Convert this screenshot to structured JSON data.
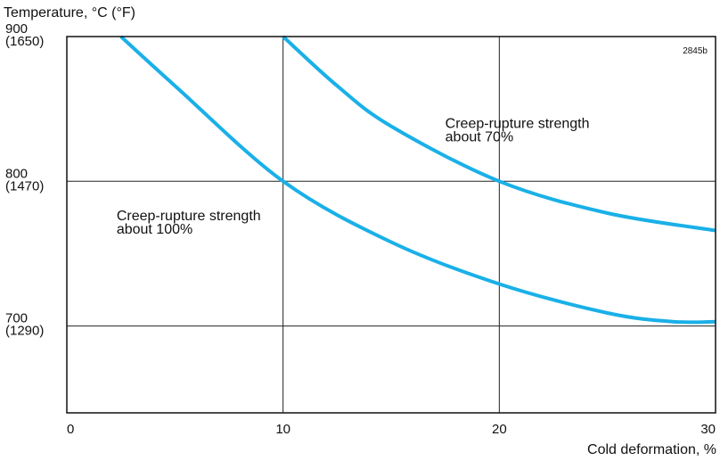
{
  "chart_data": {
    "type": "line",
    "title": "",
    "ylabel": "Temperature, °C (°F)",
    "xlabel": "Cold deformation, %",
    "figure_id": "2845b",
    "xlim": [
      0,
      30
    ],
    "ylim": [
      640,
      900
    ],
    "grid": true,
    "x_ticks": [
      {
        "value": 0,
        "label": "0"
      },
      {
        "value": 10,
        "label": "10"
      },
      {
        "value": 20,
        "label": "20"
      },
      {
        "value": 30,
        "label": "30"
      }
    ],
    "y_ticks": [
      {
        "value": 900,
        "label": "900",
        "sublabel": "(1650)"
      },
      {
        "value": 800,
        "label": "800",
        "sublabel": "(1470)"
      },
      {
        "value": 700,
        "label": "700",
        "sublabel": "(1290)"
      }
    ],
    "series": [
      {
        "color": "#1ab0e8",
        "x": [
          2.5,
          5,
          10,
          15,
          20,
          25,
          28,
          30
        ],
        "y": [
          900,
          866,
          800,
          758,
          729,
          709,
          703,
          703
        ]
      },
      {
        "color": "#1ab0e8",
        "x": [
          10,
          12.5,
          15,
          20,
          25,
          30
        ],
        "y": [
          900,
          866,
          838,
          800,
          778,
          766
        ]
      }
    ],
    "annotations": [
      {
        "id": "ann-100",
        "line1": "Creep-rupture strength",
        "line2": "about 100%",
        "x": 2.3,
        "y": 773
      },
      {
        "id": "ann-70",
        "line1": "Creep-rupture strength",
        "line2": "about 70%",
        "x": 17.5,
        "y": 837
      }
    ]
  }
}
